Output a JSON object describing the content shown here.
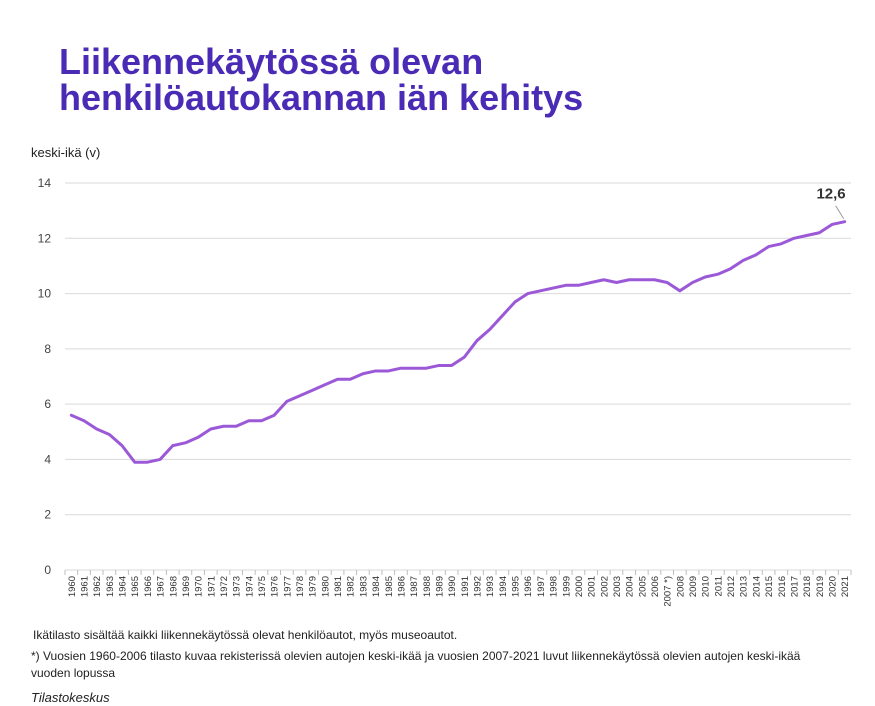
{
  "title_line1": "Liikennekäytössä olevan",
  "title_line2": "henkilöautokannan iän kehitys",
  "note1": "Ikätilasto sisältää kaikki liikennekäytössä olevat henkilöautot, myös museoautot.",
  "note2": "*) Vuosien 1960-2006 tilasto kuvaa rekisterissä olevien autojen keski-ikää ja vuosien 2007-2021 luvut liikennekäytössä olevien autojen keski-ikää vuoden lopussa",
  "source": "Tilastokeskus",
  "colors": {
    "title": "#4a2bb5",
    "line": "#9b59d8",
    "grid": "#d9d9d9"
  },
  "chart_data": {
    "type": "line",
    "ylabel": "keski-ikä (v)",
    "ylim": [
      0,
      14
    ],
    "yticks": [
      0,
      2,
      4,
      6,
      8,
      10,
      12,
      14
    ],
    "grid": true,
    "categories": [
      "1960",
      "1961",
      "1962",
      "1963",
      "1964",
      "1965",
      "1966",
      "1967",
      "1968",
      "1969",
      "1970",
      "1971",
      "1972",
      "1973",
      "1974",
      "1975",
      "1976",
      "1977",
      "1978",
      "1979",
      "1980",
      "1981",
      "1982",
      "1983",
      "1984",
      "1985",
      "1986",
      "1987",
      "1988",
      "1989",
      "1990",
      "1991",
      "1992",
      "1993",
      "1994",
      "1995",
      "1996",
      "1997",
      "1998",
      "1999",
      "2000",
      "2001",
      "2002",
      "2003",
      "2004",
      "2005",
      "2006",
      "2007 *)",
      "2008",
      "2009",
      "2010",
      "2011",
      "2012",
      "2013",
      "2014",
      "2015",
      "2016",
      "2017",
      "2018",
      "2019",
      "2020",
      "2021"
    ],
    "values": [
      5.6,
      5.4,
      5.1,
      4.9,
      4.5,
      3.9,
      3.9,
      4.0,
      4.5,
      4.6,
      4.8,
      5.1,
      5.2,
      5.2,
      5.4,
      5.4,
      5.6,
      6.1,
      6.3,
      6.5,
      6.7,
      6.9,
      6.9,
      7.1,
      7.2,
      7.2,
      7.3,
      7.3,
      7.3,
      7.4,
      7.4,
      7.7,
      8.3,
      8.7,
      9.2,
      9.7,
      10.0,
      10.1,
      10.2,
      10.3,
      10.3,
      10.4,
      10.5,
      10.4,
      10.5,
      10.5,
      10.5,
      10.4,
      10.1,
      10.4,
      10.6,
      10.7,
      10.9,
      11.2,
      11.4,
      11.7,
      11.8,
      12.0,
      12.1,
      12.2,
      12.5,
      12.6
    ],
    "annotation": {
      "label": "12,6",
      "index": 61
    }
  }
}
